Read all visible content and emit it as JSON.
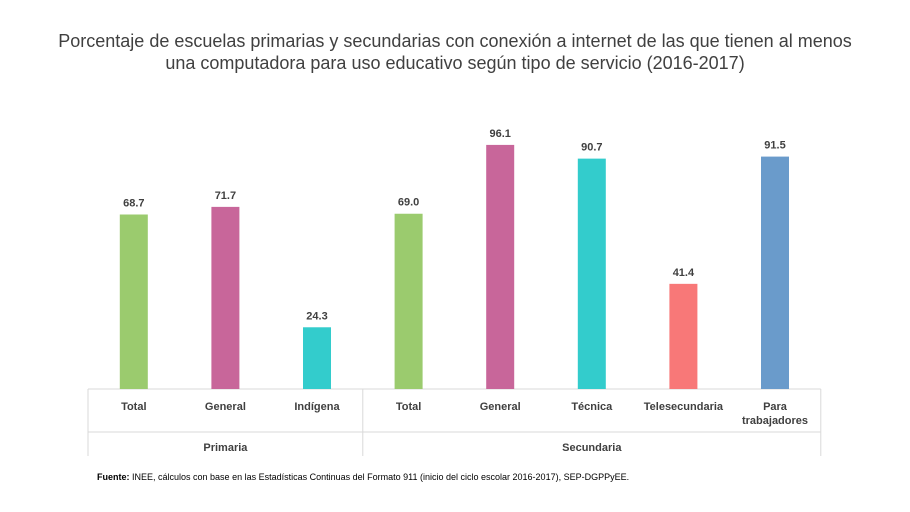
{
  "title_lines": [
    "Porcentaje de escuelas primarias y secundarias con conexión a internet de las que tienen al menos",
    "una computadora para uso educativo según tipo de servicio (2016-2017)"
  ],
  "source": {
    "label": "Fuente:",
    "text": "INEE, cálculos con base en las Estadísticas Continuas del Formato 911 (inicio del ciclo escolar 2016-2017), SEP-DGPPyEE."
  },
  "chart_data": {
    "type": "bar",
    "title": "Porcentaje de escuelas primarias y secundarias con conexión a internet de las que tienen al menos una computadora para uso educativo según tipo de servicio (2016-2017)",
    "xlabel": "",
    "ylabel": "",
    "ylim": [
      0,
      100
    ],
    "grid": false,
    "legend": "none",
    "groups": [
      {
        "name": "Primaria",
        "categories": [
          "Total",
          "General",
          "Indígena"
        ],
        "values": [
          68.7,
          71.7,
          24.3
        ],
        "colors": [
          "#9BCB6E",
          "#C8669A",
          "#33CCCC"
        ]
      },
      {
        "name": "Secundaria",
        "categories": [
          "Total",
          "General",
          "Técnica",
          "Telesecundaria",
          "Para trabajadores"
        ],
        "values": [
          69.0,
          96.1,
          90.7,
          41.4,
          91.5
        ],
        "colors": [
          "#9BCB6E",
          "#C8669A",
          "#33CCCC",
          "#F87878",
          "#6A9BCB"
        ]
      }
    ],
    "value_labels": [
      [
        "68.7",
        "71.7",
        "24.3"
      ],
      [
        "69.0",
        "96.1",
        "90.7",
        "41.4",
        "91.5"
      ]
    ]
  }
}
